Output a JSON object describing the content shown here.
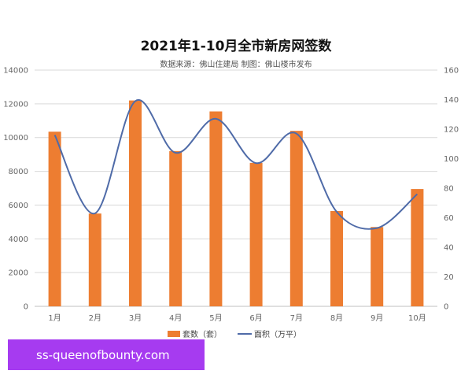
{
  "colors": {
    "bar": "#ED7D31",
    "line": "#4F6BA8",
    "grid": "#D9D9D9",
    "watermark_bg": "#A63BF0"
  },
  "chart_data": {
    "type": "bar",
    "title": "2021年1-10月全市新房网签数",
    "subtitle": "数据来源：佛山住建局 制图：佛山楼市发布",
    "categories": [
      "1月",
      "2月",
      "3月",
      "4月",
      "5月",
      "6月",
      "7月",
      "8月",
      "9月",
      "10月"
    ],
    "series": [
      {
        "name": "套数（套）",
        "type": "bar",
        "axis": "left",
        "values": [
          10350,
          5500,
          12200,
          9200,
          11550,
          8500,
          10400,
          5650,
          4700,
          6950
        ]
      },
      {
        "name": "面积（万平）",
        "type": "line",
        "axis": "right",
        "smooth": true,
        "values": [
          116,
          63,
          139,
          104,
          127,
          97,
          117,
          64,
          53,
          76
        ]
      }
    ],
    "y_left": {
      "min": 0,
      "max": 14000,
      "ticks": [
        0,
        2000,
        4000,
        6000,
        8000,
        10000,
        12000,
        14000
      ]
    },
    "y_right": {
      "min": 0,
      "max": 160,
      "ticks": [
        0,
        20,
        40,
        60,
        80,
        100,
        120,
        140,
        160
      ]
    },
    "grid": true,
    "legend_position": "bottom"
  },
  "watermark": {
    "text": "ss-queenofbounty.com"
  }
}
